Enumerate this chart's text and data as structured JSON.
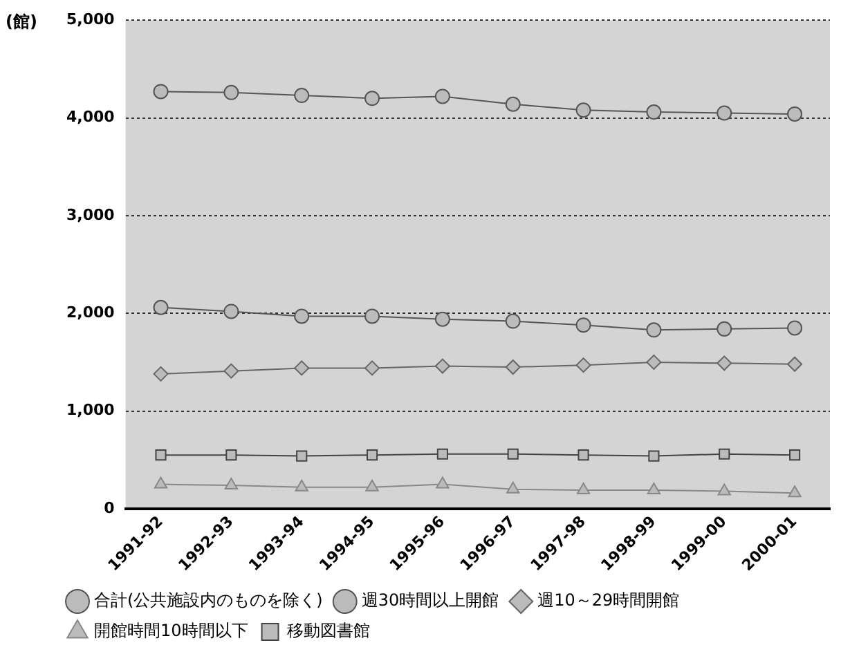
{
  "chart_data": {
    "type": "line",
    "ylabel": "(館)",
    "categories": [
      "1991-92",
      "1992-93",
      "1993-94",
      "1994-95",
      "1995-96",
      "1996-97",
      "1997-98",
      "1998-99",
      "1999-00",
      "2000-01"
    ],
    "series": [
      {
        "name": "合計(公共施設内のものを除く)",
        "color": "#555555",
        "marker": "circle",
        "values": [
          4270,
          4260,
          4230,
          4200,
          4220,
          4140,
          4080,
          4060,
          4050,
          4040
        ]
      },
      {
        "name": "週30時間以上開館",
        "color": "#555555",
        "marker": "circle",
        "values": [
          2060,
          2020,
          1970,
          1970,
          1940,
          1920,
          1880,
          1830,
          1840,
          1850
        ]
      },
      {
        "name": "週10～29時間開館",
        "color": "#666666",
        "marker": "diamond",
        "values": [
          1380,
          1410,
          1440,
          1440,
          1460,
          1450,
          1470,
          1500,
          1490,
          1480
        ]
      },
      {
        "name": "開館時間10時間以下",
        "color": "#888888",
        "marker": "triangle",
        "values": [
          250,
          240,
          220,
          220,
          250,
          200,
          190,
          190,
          180,
          160
        ]
      },
      {
        "name": "移動図書館",
        "color": "#444444",
        "marker": "square",
        "values": [
          550,
          550,
          540,
          550,
          560,
          560,
          550,
          540,
          560,
          550
        ]
      }
    ],
    "ylim": [
      0,
      5000
    ],
    "yticks": [
      {
        "value": 0,
        "label": "0"
      },
      {
        "value": 1000,
        "label": "1,000"
      },
      {
        "value": 2000,
        "label": "2,000"
      },
      {
        "value": 3000,
        "label": "3,000"
      },
      {
        "value": 4000,
        "label": "4,000"
      },
      {
        "value": 5000,
        "label": "5,000"
      }
    ],
    "grid": "y",
    "legend": "bottom",
    "line_style": "solid"
  }
}
